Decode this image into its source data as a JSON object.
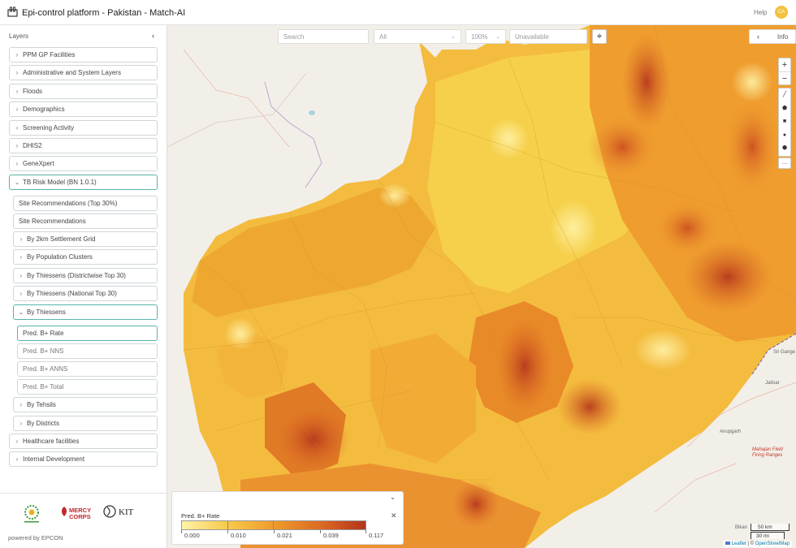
{
  "app": {
    "title": "Epi-control platform - Pakistan - Match-AI",
    "help": "Help",
    "avatar": "CA"
  },
  "sidebar": {
    "title": "Layers",
    "collapse_icon": "‹",
    "items": [
      {
        "label": "PPM GP Facilities"
      },
      {
        "label": "Administrative and System Layers"
      },
      {
        "label": "Floods"
      },
      {
        "label": "Demographics"
      },
      {
        "label": "Screening Activity"
      },
      {
        "label": "DHIS2"
      },
      {
        "label": "GeneXpert"
      },
      {
        "label": "TB Risk Model (BN 1.0.1)"
      },
      {
        "label": "Site Recommendations (Top 30%)"
      },
      {
        "label": "Site Recommendations"
      },
      {
        "label": "By 2km Settlement Grid"
      },
      {
        "label": "By Population Clusters"
      },
      {
        "label": "By Thiessens (Districtwise Top 30)"
      },
      {
        "label": "By Thiessens (National Top 30)"
      },
      {
        "label": "By Thiessens"
      },
      {
        "label": "Pred. B+ Rate"
      },
      {
        "label": "Pred. B+ NNS"
      },
      {
        "label": "Pred. B+ ANNS"
      },
      {
        "label": "Pred. B+ Total"
      },
      {
        "label": "By Tehsils"
      },
      {
        "label": "By Districts"
      },
      {
        "label": "Healthcare facilities"
      },
      {
        "label": "Internal Development"
      }
    ],
    "partners": {
      "mercy": "MERCY CORPS",
      "kit": "KIT"
    },
    "powered_by": "powered by EPCON"
  },
  "map_controls": {
    "search_placeholder": "Search",
    "filter_value": "All",
    "zoom_value": "100%",
    "status_placeholder": "Unavailable",
    "info_label": "Info",
    "zoom_in": "+",
    "zoom_out": "−",
    "more": "..."
  },
  "map_labels": {
    "sri_gange": "Sri Gange",
    "jaitsar": "Jaitsar",
    "anupgarh": "Anupgarh",
    "mahajan": "Mahajan Field Firing Ranges",
    "bikaner": "Bikan"
  },
  "legend": {
    "title": "Pred. B+ Rate",
    "ticks": [
      "0.000",
      "0.010",
      "0.021",
      "0.039",
      "0.117"
    ],
    "colors": [
      "#fff3a8",
      "#f8c94a",
      "#ef9c2c",
      "#dc6b22",
      "#b4341c"
    ],
    "toggle_icon": "⌄",
    "close_icon": "✕"
  },
  "scale": {
    "km": "50 km",
    "mi": "30 mi"
  },
  "attribution": {
    "leaflet": "Leaflet",
    "sep": " | © ",
    "osm": "OpenStreetMap"
  }
}
